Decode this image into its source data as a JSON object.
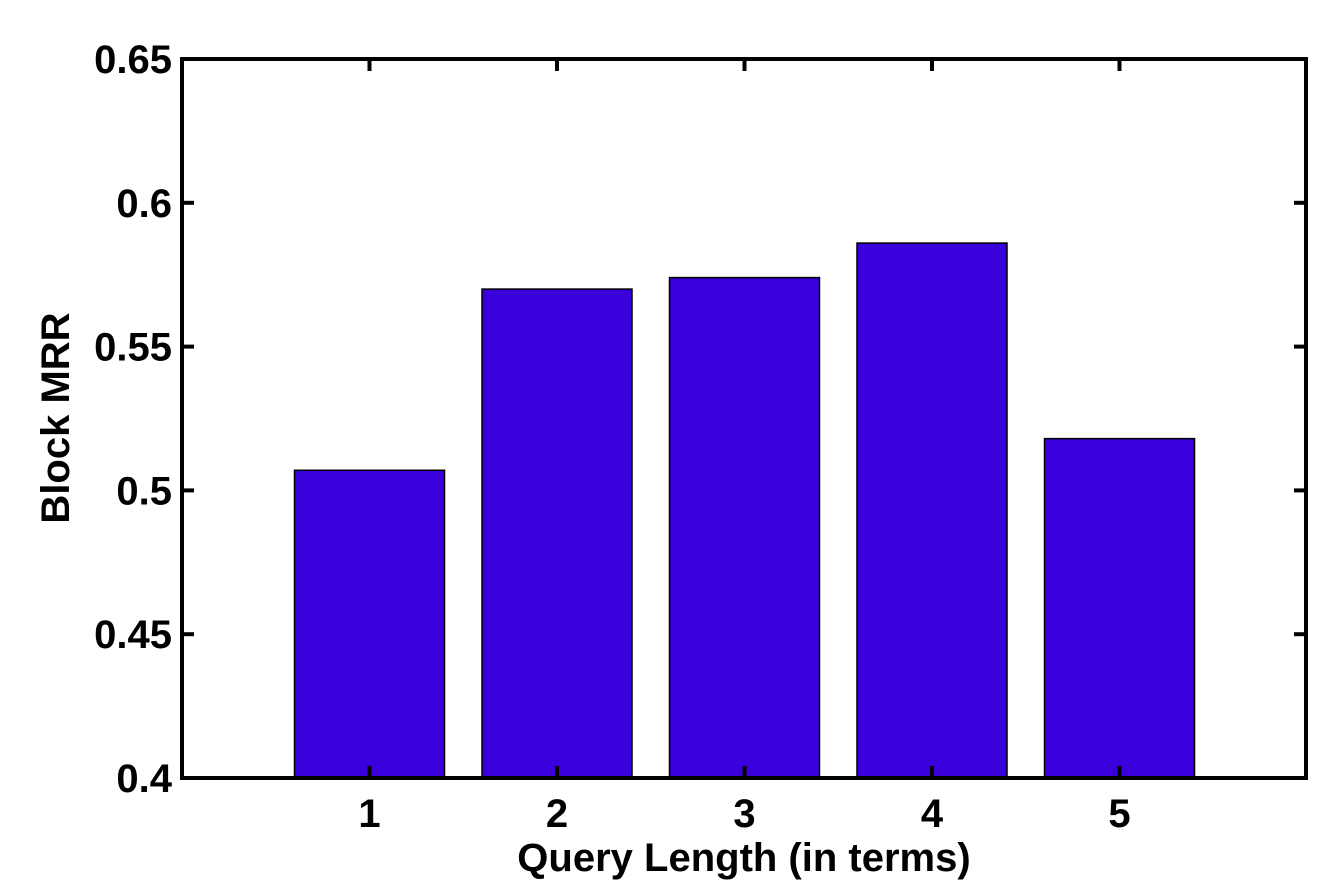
{
  "chart_data": {
    "type": "bar",
    "title": "",
    "xlabel": "Query Length (in terms)",
    "ylabel": "Block MRR",
    "categories": [
      "1",
      "2",
      "3",
      "4",
      "5"
    ],
    "values": [
      0.507,
      0.57,
      0.574,
      0.586,
      0.518
    ],
    "ylim": [
      0.4,
      0.65
    ],
    "yticks": [
      0.4,
      0.45,
      0.5,
      0.55,
      0.6,
      0.65
    ],
    "ytick_labels": [
      "0.4",
      "0.45",
      "0.5",
      "0.55",
      "0.6",
      "0.65"
    ],
    "bar_color": "#3a00dc",
    "grid": false,
    "legend": "none"
  }
}
